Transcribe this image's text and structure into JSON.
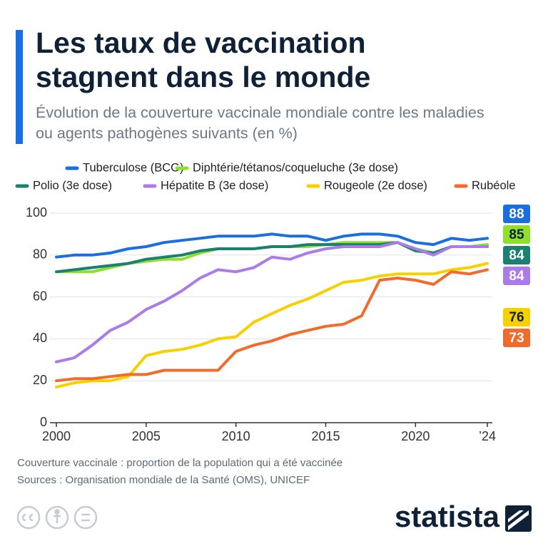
{
  "chart_data": {
    "type": "line",
    "title": "Les taux de vaccination stagnent dans le monde",
    "subtitle": "Évolution de la couverture vaccinale mondiale contre les maladies ou agents pathogènes suivants (en %)",
    "x": [
      2000,
      2001,
      2002,
      2003,
      2004,
      2005,
      2006,
      2007,
      2008,
      2009,
      2010,
      2011,
      2012,
      2013,
      2014,
      2015,
      2016,
      2017,
      2018,
      2019,
      2020,
      2021,
      2022,
      2023,
      2024
    ],
    "xlim": [
      2000,
      2024
    ],
    "xticks": [
      2000,
      2005,
      2010,
      2015,
      2020,
      {
        "value": 2024,
        "label": "’24"
      }
    ],
    "ylim": [
      0,
      100
    ],
    "yticks": [
      0,
      20,
      40,
      60,
      80,
      100
    ],
    "grid": true,
    "series": [
      {
        "name": "Tuberculose (BCG)",
        "color": "#1a6fe0",
        "values": [
          79,
          80,
          80,
          81,
          83,
          84,
          86,
          87,
          88,
          89,
          89,
          89,
          90,
          89,
          89,
          87,
          89,
          90,
          90,
          89,
          86,
          85,
          88,
          87,
          88
        ]
      },
      {
        "name": "Diphtérie/tétanos/coqueluche (3e dose)",
        "color": "#8ee02a",
        "values": [
          72,
          72,
          72,
          74,
          76,
          77,
          78,
          78,
          81,
          83,
          83,
          83,
          84,
          84,
          84,
          85,
          86,
          86,
          86,
          86,
          83,
          81,
          84,
          84,
          85
        ]
      },
      {
        "name": "Polio (3e dose)",
        "color": "#1a8070",
        "values": [
          72,
          73,
          74,
          75,
          76,
          78,
          79,
          80,
          82,
          83,
          83,
          83,
          84,
          84,
          85,
          85,
          85,
          85,
          85,
          86,
          82,
          81,
          84,
          84,
          84
        ]
      },
      {
        "name": "Hépatite B (3e dose)",
        "color": "#a97ce8",
        "values": [
          29,
          31,
          37,
          44,
          48,
          54,
          58,
          63,
          69,
          73,
          72,
          74,
          79,
          78,
          81,
          83,
          84,
          84,
          84,
          86,
          83,
          80,
          84,
          84,
          84
        ]
      },
      {
        "name": "Rougeole (2e dose)",
        "color": "#f7d000",
        "values": [
          17,
          19,
          20,
          20,
          22,
          32,
          34,
          35,
          37,
          40,
          41,
          48,
          52,
          56,
          59,
          63,
          67,
          68,
          70,
          71,
          71,
          71,
          73,
          74,
          76
        ]
      },
      {
        "name": "Rubéole",
        "color": "#f26b2a",
        "values": [
          20,
          21,
          21,
          22,
          23,
          23,
          25,
          25,
          25,
          25,
          34,
          37,
          39,
          42,
          44,
          46,
          47,
          51,
          68,
          69,
          68,
          66,
          72,
          71,
          73
        ]
      }
    ],
    "note": "Couverture vaccinale : proportion de la population qui a été vaccinée",
    "source": "Sources : Organisation mondiale de la Santé (OMS), UNICEF",
    "logo": "statista"
  }
}
